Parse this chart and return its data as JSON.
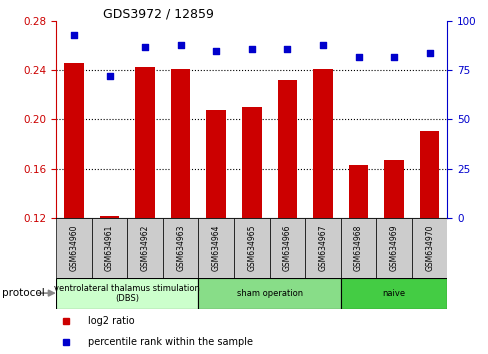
{
  "title": "GDS3972 / 12859",
  "categories": [
    "GSM634960",
    "GSM634961",
    "GSM634962",
    "GSM634963",
    "GSM634964",
    "GSM634965",
    "GSM634966",
    "GSM634967",
    "GSM634968",
    "GSM634969",
    "GSM634970"
  ],
  "log2_ratio": [
    0.246,
    0.121,
    0.243,
    0.241,
    0.208,
    0.21,
    0.232,
    0.241,
    0.163,
    0.167,
    0.191
  ],
  "percentile_rank": [
    93,
    72,
    87,
    88,
    85,
    86,
    86,
    88,
    82,
    82,
    84
  ],
  "bar_color": "#cc0000",
  "dot_color": "#0000cc",
  "ylim_left": [
    0.12,
    0.28
  ],
  "ylim_right": [
    0,
    100
  ],
  "yticks_left": [
    0.12,
    0.16,
    0.2,
    0.24,
    0.28
  ],
  "yticks_right": [
    0,
    25,
    50,
    75,
    100
  ],
  "protocol_groups": [
    {
      "label": "ventrolateral thalamus stimulation\n(DBS)",
      "start": 0,
      "end": 3,
      "color": "#ccffcc"
    },
    {
      "label": "sham operation",
      "start": 4,
      "end": 7,
      "color": "#88dd88"
    },
    {
      "label": "naive",
      "start": 8,
      "end": 10,
      "color": "#44cc44"
    }
  ],
  "legend_items": [
    {
      "label": "log2 ratio",
      "color": "#cc0000"
    },
    {
      "label": "percentile rank within the sample",
      "color": "#0000cc"
    }
  ],
  "protocol_label": "protocol",
  "background_color": "#ffffff",
  "tick_color_left": "#cc0000",
  "tick_color_right": "#0000cc",
  "label_box_color": "#cccccc",
  "grid_color": "#000000"
}
